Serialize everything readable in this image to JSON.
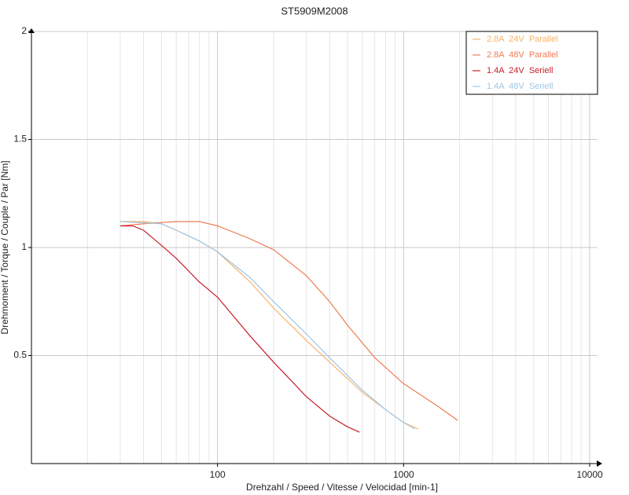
{
  "chart_data": {
    "type": "line",
    "title": "ST5909M2008",
    "x_label": "Drehzahl / Speed / Vitesse / Velocidad [min-1]",
    "y_label": "Drehmoment / Torque / Couple / Par [Nm]",
    "xscale": "log",
    "xlim": [
      10,
      10000
    ],
    "xticks": [
      100,
      1000,
      10000
    ],
    "ylim": [
      0,
      2
    ],
    "yticks": [
      0.5,
      1,
      1.5,
      2
    ],
    "grid": true,
    "legend": "upper right",
    "series": [
      {
        "name": "2.8A  24V  Parallel",
        "color": "#f6b26b",
        "x": [
          30,
          40,
          50,
          60,
          80,
          100,
          150,
          200,
          300,
          400,
          600,
          800,
          1000,
          1200
        ],
        "values": [
          1.12,
          1.12,
          1.11,
          1.08,
          1.03,
          0.98,
          0.84,
          0.72,
          0.57,
          0.47,
          0.33,
          0.25,
          0.19,
          0.16
        ]
      },
      {
        "name": "2.8A  48V  Parallel",
        "color": "#ef7c55",
        "x": [
          30,
          40,
          60,
          80,
          100,
          150,
          200,
          300,
          400,
          500,
          700,
          1000,
          1500,
          1950
        ],
        "values": [
          1.1,
          1.11,
          1.12,
          1.12,
          1.1,
          1.04,
          0.99,
          0.87,
          0.75,
          0.64,
          0.49,
          0.37,
          0.27,
          0.2
        ]
      },
      {
        "name": "1.4A  24V  Seriell",
        "color": "#c8202a",
        "x": [
          30,
          35,
          40,
          50,
          60,
          80,
          100,
          150,
          200,
          300,
          400,
          500,
          580
        ],
        "values": [
          1.1,
          1.1,
          1.08,
          1.01,
          0.95,
          0.84,
          0.77,
          0.59,
          0.47,
          0.31,
          0.22,
          0.17,
          0.145
        ]
      },
      {
        "name": "1.4A  48V  Seriell",
        "color": "#9ec6e6",
        "x": [
          30,
          50,
          60,
          80,
          100,
          150,
          200,
          300,
          400,
          600,
          800,
          1000,
          1150
        ],
        "values": [
          1.12,
          1.11,
          1.08,
          1.03,
          0.98,
          0.86,
          0.75,
          0.6,
          0.49,
          0.34,
          0.25,
          0.19,
          0.16
        ]
      }
    ]
  }
}
